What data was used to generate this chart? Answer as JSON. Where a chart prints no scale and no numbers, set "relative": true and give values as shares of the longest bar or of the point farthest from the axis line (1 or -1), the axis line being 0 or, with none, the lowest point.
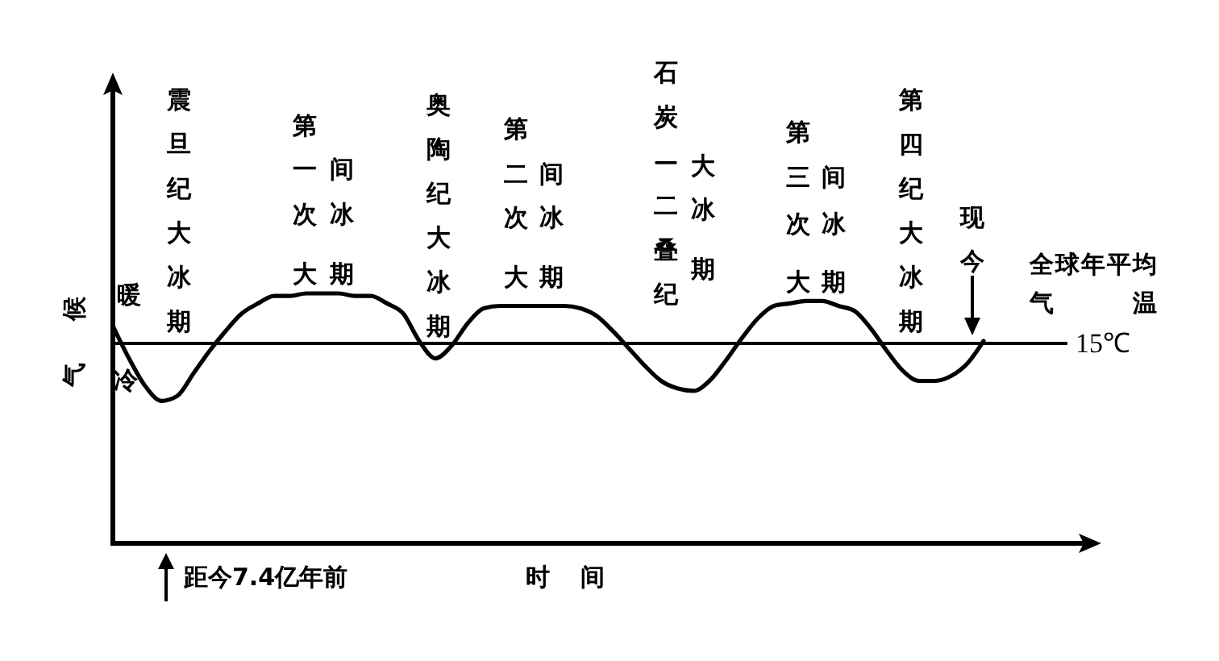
{
  "chart_data": {
    "type": "line",
    "relative": true,
    "xlabel": "时间",
    "ylabel": "气候",
    "line_style": "solid",
    "categories": [
      null,
      null,
      null,
      null,
      null,
      null,
      null,
      null,
      null,
      null,
      null,
      null,
      null,
      null,
      null,
      null,
      null,
      null,
      null,
      null,
      null,
      null,
      null,
      null,
      null,
      null,
      null,
      null,
      null,
      null,
      null,
      null,
      null,
      null,
      null,
      null,
      null,
      null,
      null,
      null,
      null,
      null,
      null,
      null,
      null,
      null,
      null,
      null,
      null,
      null,
      null,
      null,
      null,
      null,
      null
    ],
    "series": [
      {
        "color": "#000000",
        "values": [
          0.87,
          0.74,
          0.63,
          0.57,
          0.59,
          0.68,
          0.77,
          0.85,
          0.92,
          0.96,
          0.99,
          0.99,
          1,
          1,
          1,
          0.99,
          0.99,
          0.96,
          0.92,
          0.81,
          0.74,
          0.79,
          0.88,
          0.94,
          0.95,
          0.95,
          0.95,
          0.95,
          0.95,
          0.94,
          0.91,
          0.85,
          0.78,
          0.71,
          0.65,
          0.62,
          0.61,
          0.65,
          0.73,
          0.82,
          0.9,
          0.95,
          0.96,
          0.97,
          0.97,
          0.95,
          0.93,
          0.86,
          0.77,
          0.69,
          0.65,
          0.65,
          0.67,
          0.72,
          0.81
        ]
      }
    ],
    "ref_lines": [
      {
        "axis": "y",
        "value": 0.8,
        "label": "15℃",
        "color": "#000000"
      }
    ],
    "annotations": [
      "震旦纪大冰期",
      "第一次大",
      "间冰期",
      "奥陶纪大冰期",
      "第二次大",
      "间冰期",
      "石炭—二叠纪",
      "第三次大",
      "间冰期",
      "第四纪大冰期",
      "大冰期",
      "现今",
      "全球年平均气温",
      "暖",
      "冷",
      "距今7.4亿年前"
    ]
  }
}
